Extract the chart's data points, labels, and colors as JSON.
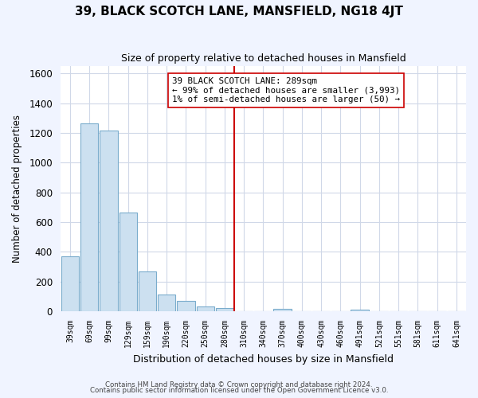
{
  "title": "39, BLACK SCOTCH LANE, MANSFIELD, NG18 4JT",
  "subtitle": "Size of property relative to detached houses in Mansfield",
  "xlabel": "Distribution of detached houses by size in Mansfield",
  "ylabel": "Number of detached properties",
  "bar_labels": [
    "39sqm",
    "69sqm",
    "99sqm",
    "129sqm",
    "159sqm",
    "190sqm",
    "220sqm",
    "250sqm",
    "280sqm",
    "310sqm",
    "340sqm",
    "370sqm",
    "400sqm",
    "430sqm",
    "460sqm",
    "491sqm",
    "521sqm",
    "551sqm",
    "581sqm",
    "611sqm",
    "641sqm"
  ],
  "bar_values": [
    370,
    1265,
    1215,
    665,
    270,
    115,
    70,
    35,
    20,
    0,
    0,
    15,
    0,
    0,
    0,
    10,
    0,
    0,
    0,
    0,
    0
  ],
  "bar_color": "#cce0f0",
  "bar_edge_color": "#7aaccc",
  "vline_x": 8.5,
  "vline_color": "#cc0000",
  "ylim": [
    0,
    1650
  ],
  "yticks": [
    0,
    200,
    400,
    600,
    800,
    1000,
    1200,
    1400,
    1600
  ],
  "annotation_title": "39 BLACK SCOTCH LANE: 289sqm",
  "annotation_line1": "← 99% of detached houses are smaller (3,993)",
  "annotation_line2": "1% of semi-detached houses are larger (50) →",
  "footnote1": "Contains HM Land Registry data © Crown copyright and database right 2024.",
  "footnote2": "Contains public sector information licensed under the Open Government Licence v3.0.",
  "plot_bg_color": "#ffffff",
  "fig_bg_color": "#f0f4ff",
  "grid_color": "#d0d8e8"
}
